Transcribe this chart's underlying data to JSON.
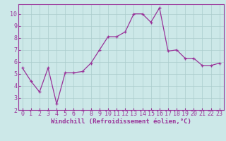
{
  "x": [
    0,
    1,
    2,
    3,
    4,
    5,
    6,
    7,
    8,
    9,
    10,
    11,
    12,
    13,
    14,
    15,
    16,
    17,
    18,
    19,
    20,
    21,
    22,
    23
  ],
  "y": [
    5.5,
    4.4,
    3.5,
    5.5,
    2.5,
    5.1,
    5.1,
    5.2,
    5.9,
    7.0,
    8.1,
    8.1,
    8.5,
    10.0,
    10.0,
    9.3,
    10.5,
    6.9,
    7.0,
    6.3,
    6.3,
    5.7,
    5.7,
    5.9
  ],
  "line_color": "#993399",
  "marker": "+",
  "marker_size": 3,
  "line_width": 0.9,
  "bg_color": "#cce8e8",
  "grid_color": "#aacccc",
  "xlabel": "Windchill (Refroidissement éolien,°C)",
  "xlabel_color": "#993399",
  "tick_label_color": "#993399",
  "xlim": [
    -0.5,
    23.5
  ],
  "ylim": [
    2,
    10.8
  ],
  "yticks": [
    2,
    3,
    4,
    5,
    6,
    7,
    8,
    9,
    10
  ],
  "xticks": [
    0,
    1,
    2,
    3,
    4,
    5,
    6,
    7,
    8,
    9,
    10,
    11,
    12,
    13,
    14,
    15,
    16,
    17,
    18,
    19,
    20,
    21,
    22,
    23
  ],
  "tick_fontsize": 6,
  "xlabel_fontsize": 6.5
}
